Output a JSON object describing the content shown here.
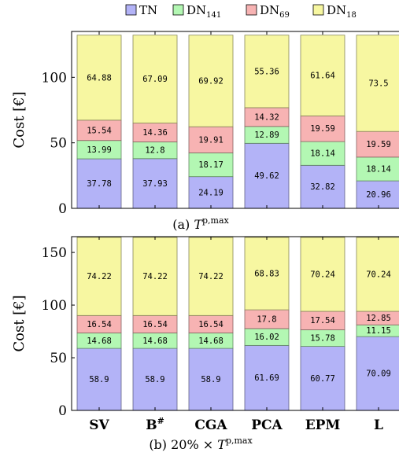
{
  "legend": {
    "items": [
      {
        "base": "TN",
        "sub": "",
        "color": "#b3b3f7"
      },
      {
        "base": "DN",
        "sub": "141",
        "color": "#b3f7b3"
      },
      {
        "base": "DN",
        "sub": "69",
        "color": "#f7b3b3"
      },
      {
        "base": "DN",
        "sub": "18",
        "color": "#f7f7a1"
      }
    ]
  },
  "chart_data": [
    {
      "type": "bar",
      "stacked": true,
      "caption": {
        "prefix": "(a) ",
        "symbol": "T",
        "sup": "p,max"
      },
      "ylabel": "Cost [€]",
      "ylim": [
        0,
        135
      ],
      "yticks": [
        0,
        50,
        100
      ],
      "categories": [
        "SV",
        "B#",
        "CGA",
        "PCA",
        "EPM",
        "L"
      ],
      "show_xticklabels": false,
      "series": [
        {
          "name": "TN",
          "color": "#b3b3f7",
          "values": [
            37.78,
            37.93,
            24.19,
            49.62,
            32.82,
            20.96
          ]
        },
        {
          "name": "DN141",
          "color": "#b3f7b3",
          "values": [
            13.99,
            12.8,
            18.17,
            12.89,
            18.14,
            18.14
          ]
        },
        {
          "name": "DN69",
          "color": "#f7b3b3",
          "values": [
            15.54,
            14.36,
            19.91,
            14.32,
            19.59,
            19.59
          ]
        },
        {
          "name": "DN18",
          "color": "#f7f7a1",
          "values": [
            64.88,
            67.09,
            69.92,
            55.36,
            61.64,
            73.5
          ]
        }
      ],
      "labels": [
        [
          "37.78",
          "37.93",
          "24.19",
          "49.62",
          "32.82",
          "20.96"
        ],
        [
          "13.99",
          "12.8",
          "18.17",
          "12.89",
          "18.14",
          "18.14"
        ],
        [
          "15.54",
          "14.36",
          "19.91",
          "14.32",
          "19.59",
          "19.59"
        ],
        [
          "64.88",
          "67.09",
          "69.92",
          "55.36",
          "61.64",
          "73.5"
        ]
      ]
    },
    {
      "type": "bar",
      "stacked": true,
      "caption": {
        "prefix": "(b) 20% × ",
        "symbol": "T",
        "sup": "p,max"
      },
      "ylabel": "Cost [€]",
      "ylim": [
        0,
        165
      ],
      "yticks": [
        0,
        50,
        100,
        150
      ],
      "categories": [
        "SV",
        "B#",
        "CGA",
        "PCA",
        "EPM",
        "L"
      ],
      "show_xticklabels": true,
      "series": [
        {
          "name": "TN",
          "color": "#b3b3f7",
          "values": [
            58.9,
            58.9,
            58.9,
            61.69,
            60.77,
            70.09
          ]
        },
        {
          "name": "DN141",
          "color": "#b3f7b3",
          "values": [
            14.68,
            14.68,
            14.68,
            16.02,
            15.78,
            11.15
          ]
        },
        {
          "name": "DN69",
          "color": "#f7b3b3",
          "values": [
            16.54,
            16.54,
            16.54,
            17.8,
            17.54,
            12.85
          ]
        },
        {
          "name": "DN18",
          "color": "#f7f7a1",
          "values": [
            74.22,
            74.22,
            74.22,
            68.83,
            70.24,
            70.24
          ]
        }
      ],
      "labels": [
        [
          "58.9",
          "58.9",
          "58.9",
          "61.69",
          "60.77",
          "70.09"
        ],
        [
          "14.68",
          "14.68",
          "14.68",
          "16.02",
          "15.78",
          "11.15"
        ],
        [
          "16.54",
          "16.54",
          "16.54",
          "17.8",
          "17.54",
          "12.85"
        ],
        [
          "74.22",
          "74.22",
          "74.22",
          "68.83",
          "70.24",
          "70.24"
        ]
      ]
    }
  ]
}
